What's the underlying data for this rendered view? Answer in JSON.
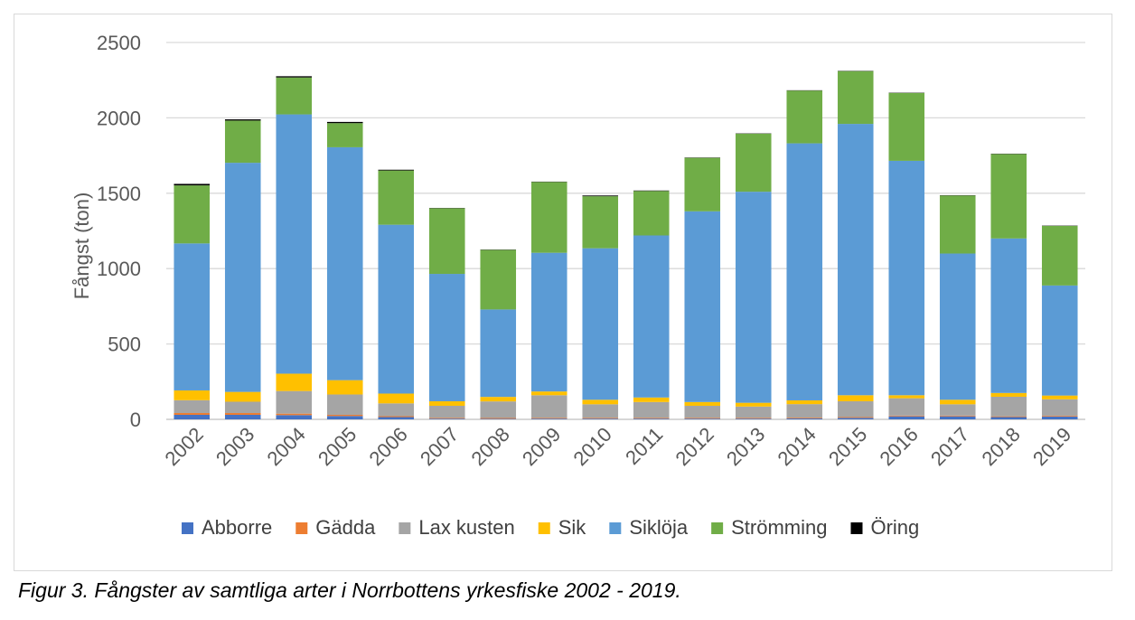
{
  "chart_data": {
    "type": "bar",
    "stacked": true,
    "ylabel": "Fångst (ton)",
    "ylim": [
      0,
      2500
    ],
    "yticks": [
      0,
      500,
      1000,
      1500,
      2000,
      2500
    ],
    "grid": true,
    "legend_position": "bottom",
    "categories": [
      "2002",
      "2003",
      "2004",
      "2005",
      "2006",
      "2007",
      "2008",
      "2009",
      "2010",
      "2011",
      "2012",
      "2013",
      "2014",
      "2015",
      "2016",
      "2017",
      "2018",
      "2019"
    ],
    "series": [
      {
        "name": "Abborre",
        "color": "#4472C4",
        "values": [
          30,
          30,
          28,
          22,
          15,
          5,
          4,
          5,
          5,
          5,
          5,
          5,
          6,
          10,
          20,
          20,
          15,
          18
        ]
      },
      {
        "name": "Gädda",
        "color": "#ED7D31",
        "values": [
          12,
          12,
          10,
          8,
          6,
          5,
          5,
          5,
          5,
          5,
          5,
          5,
          5,
          5,
          5,
          5,
          5,
          5
        ]
      },
      {
        "name": "Lax kusten",
        "color": "#A5A5A5",
        "values": [
          85,
          75,
          150,
          135,
          85,
          80,
          110,
          150,
          90,
          105,
          80,
          75,
          90,
          105,
          115,
          75,
          130,
          110
        ]
      },
      {
        "name": "Sik",
        "color": "#FFC000",
        "values": [
          65,
          65,
          115,
          95,
          65,
          30,
          30,
          25,
          30,
          30,
          25,
          25,
          25,
          40,
          20,
          30,
          25,
          25
        ]
      },
      {
        "name": "Siklöja",
        "color": "#5B9BD5",
        "values": [
          975,
          1520,
          1720,
          1545,
          1120,
          845,
          580,
          920,
          1005,
          1075,
          1265,
          1400,
          1705,
          1800,
          1555,
          970,
          1025,
          730
        ]
      },
      {
        "name": "Strömming",
        "color": "#70AD47",
        "values": [
          385,
          280,
          245,
          160,
          360,
          435,
          395,
          470,
          345,
          295,
          355,
          385,
          350,
          350,
          450,
          385,
          560,
          395
        ]
      },
      {
        "name": "Öring",
        "color": "#000000",
        "values": [
          10,
          8,
          8,
          8,
          5,
          2,
          2,
          2,
          5,
          3,
          2,
          2,
          2,
          2,
          2,
          2,
          2,
          2
        ]
      }
    ]
  },
  "caption": "Figur 3. Fångster av samtliga arter i Norrbottens yrkesfiske 2002 - 2019."
}
